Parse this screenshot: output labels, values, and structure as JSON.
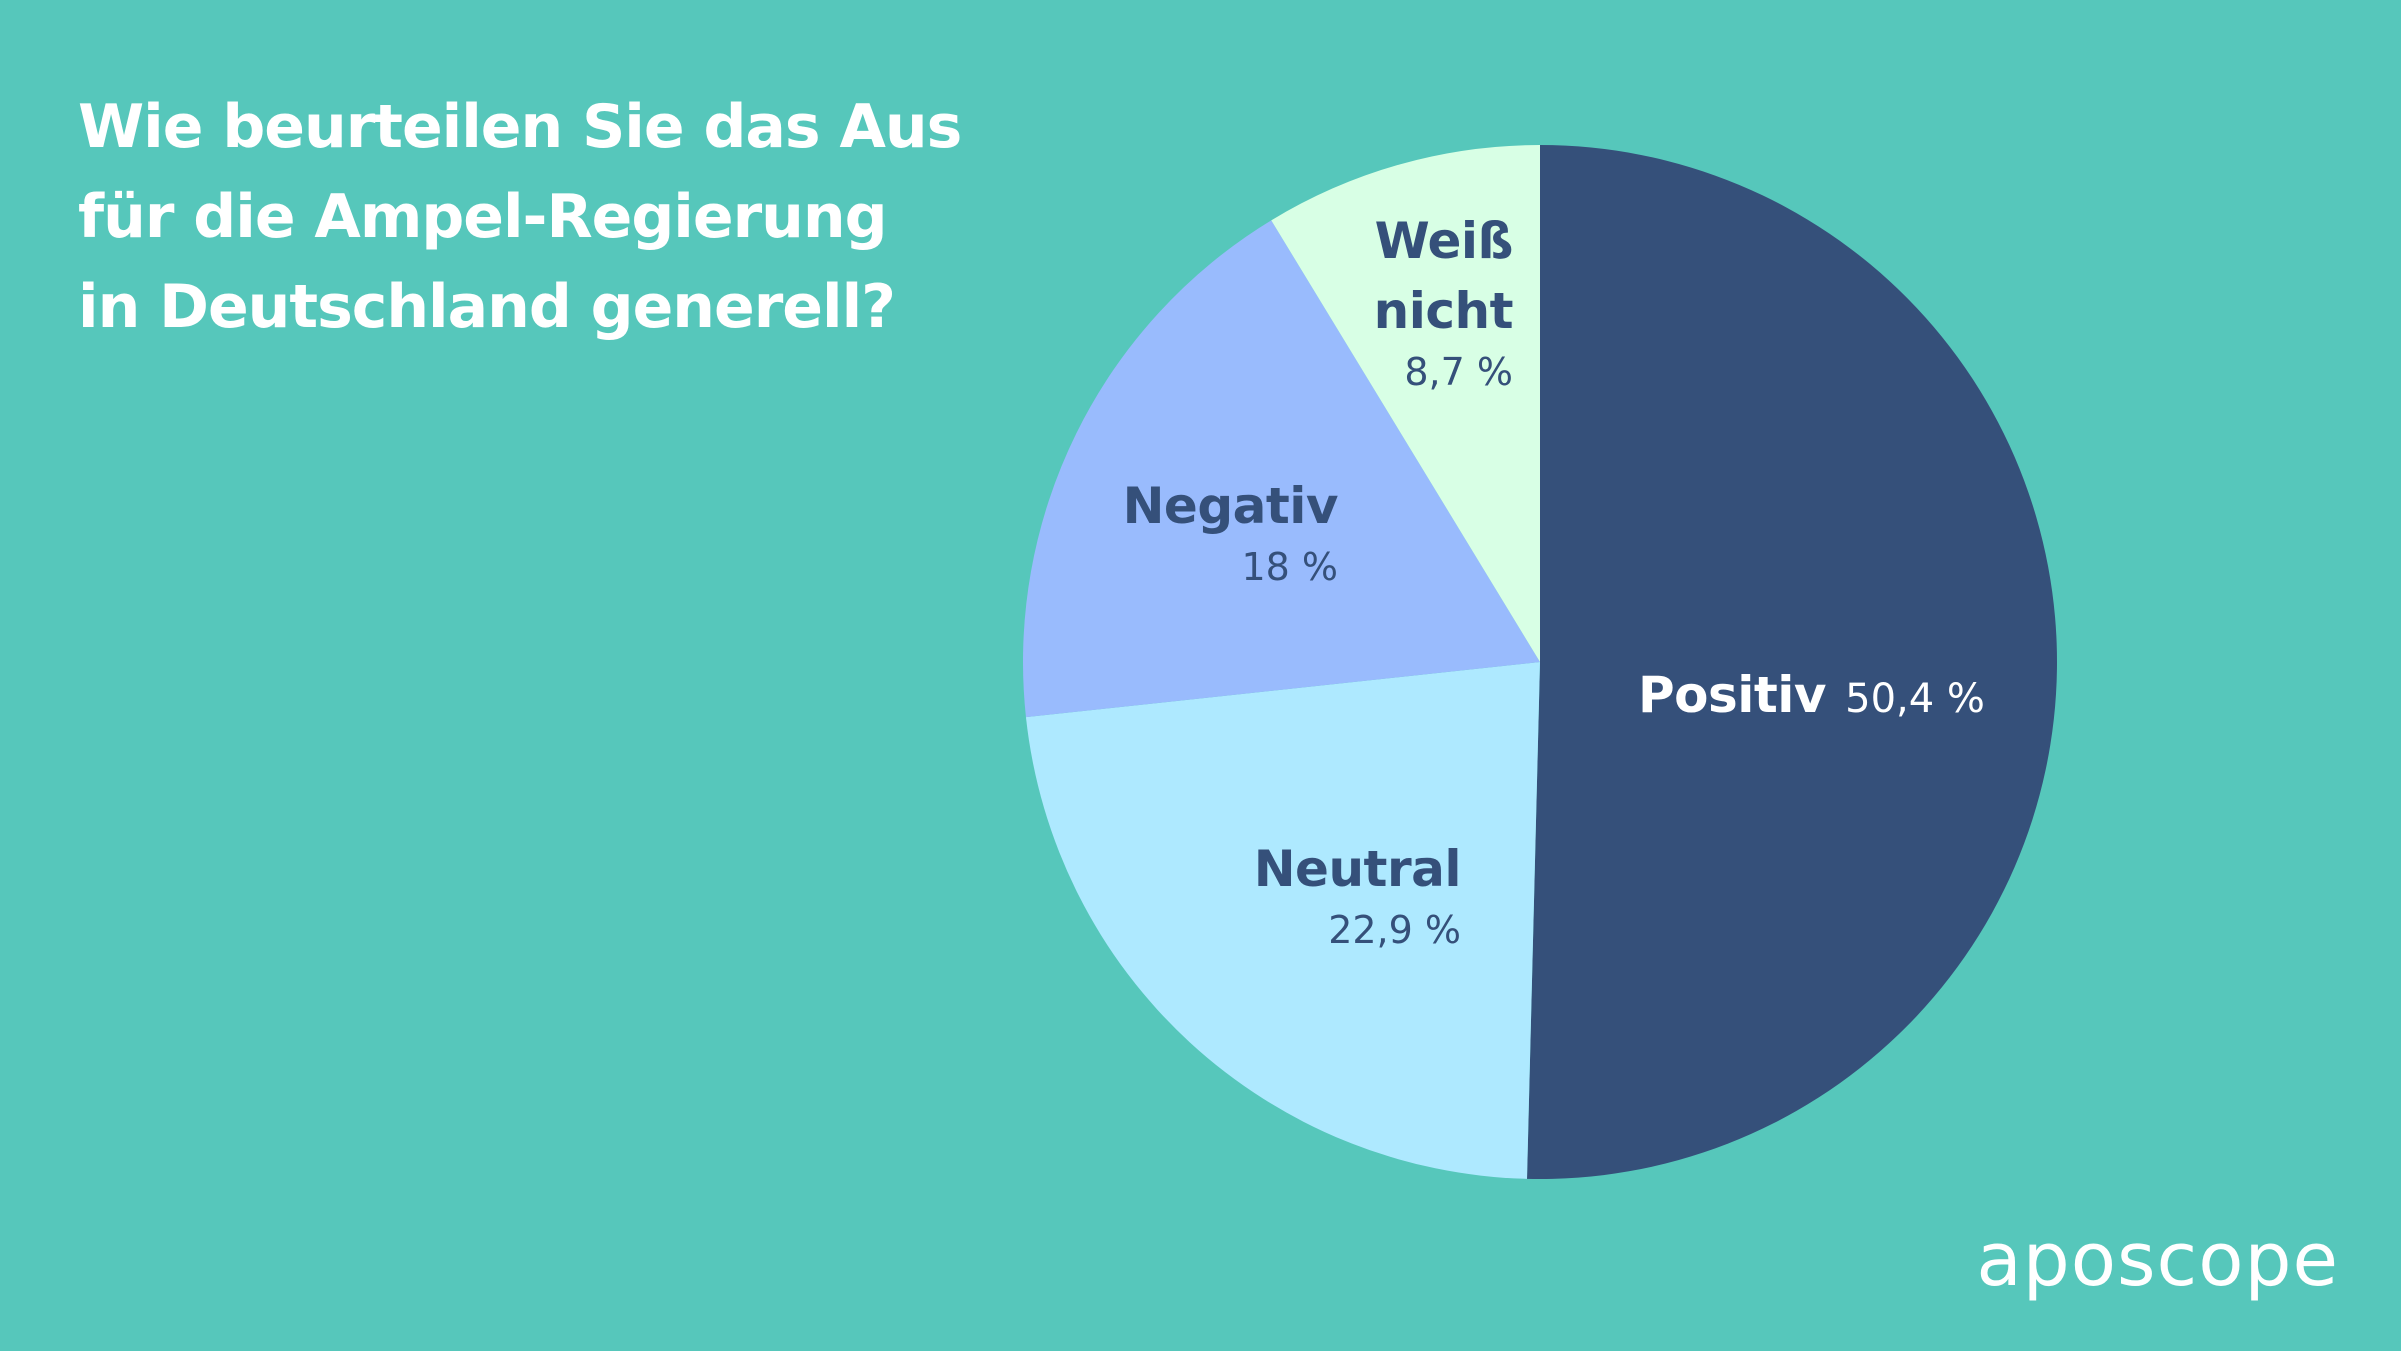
{
  "title_lines": [
    "Wie beurteilen Sie das Aus",
    "für die Ampel-Regierung",
    "in Deutschland generell?"
  ],
  "brand": "aposcope",
  "colors": {
    "background": "#56c7bb",
    "title_text": "#ffffff",
    "label_dark": "#35507a"
  },
  "chart_data": {
    "type": "pie",
    "title": "Wie beurteilen Sie das Aus für die Ampel-Regierung in Deutschland generell?",
    "start": "12 o'clock",
    "direction": "clockwise",
    "slices": [
      {
        "label": "Positiv",
        "value": 50.4,
        "display": "50,4 %",
        "color": "#35507a"
      },
      {
        "label": "Neutral",
        "value": 22.9,
        "display": "22,9 %",
        "color": "#aee9ff"
      },
      {
        "label": "Negativ",
        "value": 18,
        "display": "18 %",
        "color": "#99bbfd"
      },
      {
        "label": "Weiß nicht",
        "value": 8.7,
        "display": "8,7 %",
        "color": "#d8ffe5"
      }
    ]
  }
}
